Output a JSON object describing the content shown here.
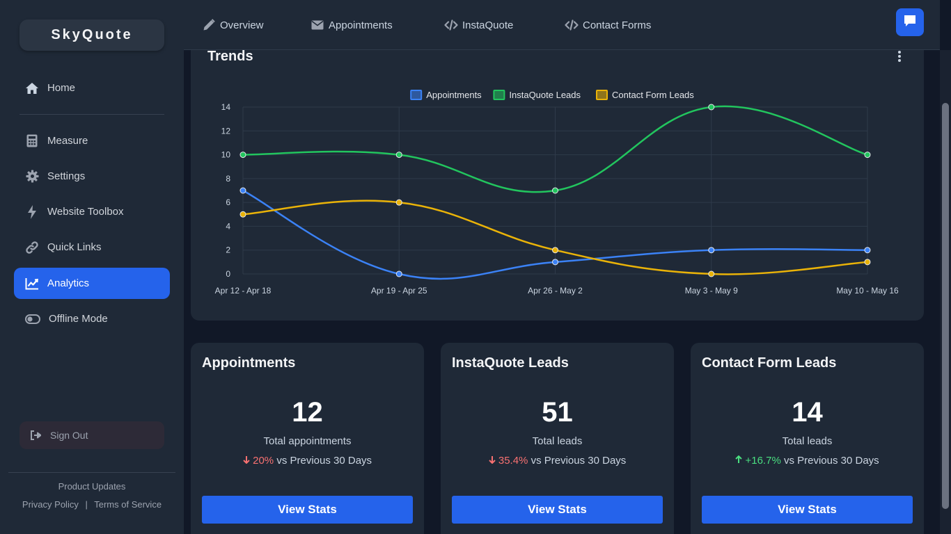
{
  "brand": {
    "name": "SkyQuote"
  },
  "sidebar": {
    "items": [
      {
        "label": "Home",
        "icon": "home-icon"
      },
      {
        "label": "Measure",
        "icon": "calculator-icon"
      },
      {
        "label": "Settings",
        "icon": "gear-icon"
      },
      {
        "label": "Website Toolbox",
        "icon": "bolt-icon"
      },
      {
        "label": "Quick Links",
        "icon": "link-icon"
      },
      {
        "label": "Analytics",
        "icon": "chart-line-icon",
        "active": true
      },
      {
        "label": "Offline Mode",
        "icon": "toggle-icon"
      }
    ],
    "sign_out": "Sign Out",
    "product_updates": "Product Updates",
    "privacy": "Privacy Policy",
    "separator": "|",
    "terms": "Terms of Service"
  },
  "topnav": {
    "tabs": [
      {
        "label": "Overview",
        "icon": "pencil-icon"
      },
      {
        "label": "Appointments",
        "icon": "envelope-icon"
      },
      {
        "label": "InstaQuote",
        "icon": "code-icon"
      },
      {
        "label": "Contact Forms",
        "icon": "code-icon"
      }
    ]
  },
  "trends": {
    "title": "Trends"
  },
  "chart_data": {
    "type": "line",
    "title": "Trends",
    "categories": [
      "Apr 12 - Apr 18",
      "Apr 19 - Apr 25",
      "Apr 26 - May 2",
      "May 3 - May 9",
      "May 10 - May 16"
    ],
    "series": [
      {
        "name": "Appointments",
        "values": [
          7,
          0,
          1,
          2,
          2
        ],
        "color": "#3b82f6"
      },
      {
        "name": "InstaQuote Leads",
        "values": [
          10,
          10,
          7,
          14,
          10
        ],
        "color": "#22c55e"
      },
      {
        "name": "Contact Form Leads",
        "values": [
          5,
          6,
          2,
          0,
          1
        ],
        "color": "#eab308"
      }
    ],
    "ylim": [
      0,
      14
    ],
    "yticks": [
      0,
      2,
      4,
      6,
      8,
      10,
      12,
      14
    ],
    "legend": "top-center",
    "grid": true
  },
  "stats": [
    {
      "title": "Appointments",
      "value": "12",
      "caption": "Total appointments",
      "change": "20%",
      "direction": "down",
      "compare": "vs Previous 30 Days",
      "button": "View Stats"
    },
    {
      "title": "InstaQuote Leads",
      "value": "51",
      "caption": "Total leads",
      "change": "35.4%",
      "direction": "down",
      "compare": "vs Previous 30 Days",
      "button": "View Stats"
    },
    {
      "title": "Contact Form Leads",
      "value": "14",
      "caption": "Total leads",
      "change": "+16.7%",
      "direction": "up",
      "compare": "vs Previous 30 Days",
      "button": "View Stats"
    }
  ],
  "colors": {
    "accent": "#2563eb",
    "sidebar": "#1f2937",
    "background": "#111827",
    "down": "#f87171",
    "up": "#4ade80"
  }
}
